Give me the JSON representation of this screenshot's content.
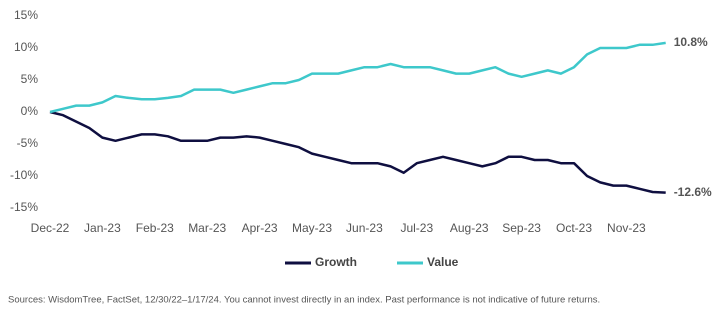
{
  "chart_data": {
    "type": "line",
    "x": [
      "Dec-22",
      null,
      null,
      null,
      "Jan-23",
      null,
      null,
      null,
      "Feb-23",
      null,
      null,
      null,
      "Mar-23",
      null,
      null,
      null,
      "Apr-23",
      null,
      null,
      null,
      "May-23",
      null,
      null,
      null,
      "Jun-23",
      null,
      null,
      null,
      "Jul-23",
      null,
      null,
      null,
      "Aug-23",
      null,
      null,
      null,
      "Sep-23",
      null,
      null,
      null,
      "Oct-23",
      null,
      null,
      null,
      "Nov-23",
      null,
      null,
      null
    ],
    "series": [
      {
        "name": "Growth",
        "color": "#0f0f40",
        "values": [
          0,
          -0.5,
          -1.5,
          -2.5,
          -4,
          -4.5,
          -4,
          -3.5,
          -3.5,
          -3.8,
          -4.5,
          -4.5,
          -4.5,
          -4,
          -4,
          -3.8,
          -4,
          -4.5,
          -5,
          -5.5,
          -6.5,
          -7,
          -7.5,
          -8,
          -8,
          -8,
          -8.5,
          -9.5,
          -8,
          -7.5,
          -7,
          -7.5,
          -8,
          -8.5,
          -8,
          -7,
          -7,
          -7.5,
          -7.5,
          -8,
          -8,
          -10,
          -11,
          -11.5,
          -11.5,
          -12,
          -12.5,
          -12.6
        ],
        "value_labels": [
          null,
          null,
          null,
          null,
          null,
          null,
          null,
          null,
          null,
          null,
          null,
          null,
          null,
          null,
          null,
          null,
          null,
          null,
          null,
          null,
          null,
          null,
          null,
          null,
          null,
          null,
          null,
          null,
          null,
          null,
          null,
          null,
          null,
          null,
          null,
          null,
          null,
          null,
          null,
          null,
          null,
          null,
          null,
          null,
          null,
          null,
          null,
          "-12.6%"
        ]
      },
      {
        "name": "Value",
        "color": "#3ec8cb",
        "values": [
          0,
          0.5,
          1,
          1,
          1.5,
          2.5,
          2.2,
          2,
          2,
          2.2,
          2.5,
          3.5,
          3.5,
          3.5,
          3,
          3.5,
          4,
          4.5,
          4.5,
          5,
          6,
          6,
          6,
          6.5,
          7,
          7,
          7.5,
          7,
          7,
          7,
          6.5,
          6,
          6,
          6.5,
          7,
          6,
          5.5,
          6,
          6.5,
          6,
          7,
          9,
          10,
          10,
          10,
          10.5,
          10.5,
          10.8
        ],
        "value_labels": [
          null,
          null,
          null,
          null,
          null,
          null,
          null,
          null,
          null,
          null,
          null,
          null,
          null,
          null,
          null,
          null,
          null,
          null,
          null,
          null,
          null,
          null,
          null,
          null,
          null,
          null,
          null,
          null,
          null,
          null,
          null,
          null,
          null,
          null,
          null,
          null,
          null,
          null,
          null,
          null,
          null,
          null,
          null,
          null,
          null,
          null,
          null,
          "10.8%"
        ]
      }
    ],
    "ylim": [
      -15,
      15
    ],
    "yticks": [
      {
        "value": 15,
        "label": "15%"
      },
      {
        "value": 10,
        "label": "10%"
      },
      {
        "value": 5,
        "label": "5%"
      },
      {
        "value": 0,
        "label": "0%"
      },
      {
        "value": -5,
        "label": "-5%"
      },
      {
        "value": -10,
        "label": "-10%"
      },
      {
        "value": -15,
        "label": "-15%"
      }
    ],
    "legend": "bottom",
    "source": "Sources: WisdomTree, FactSet, 12/30/22–1/17/24. You cannot invest directly in an index. Past performance is not indicative of future returns."
  }
}
